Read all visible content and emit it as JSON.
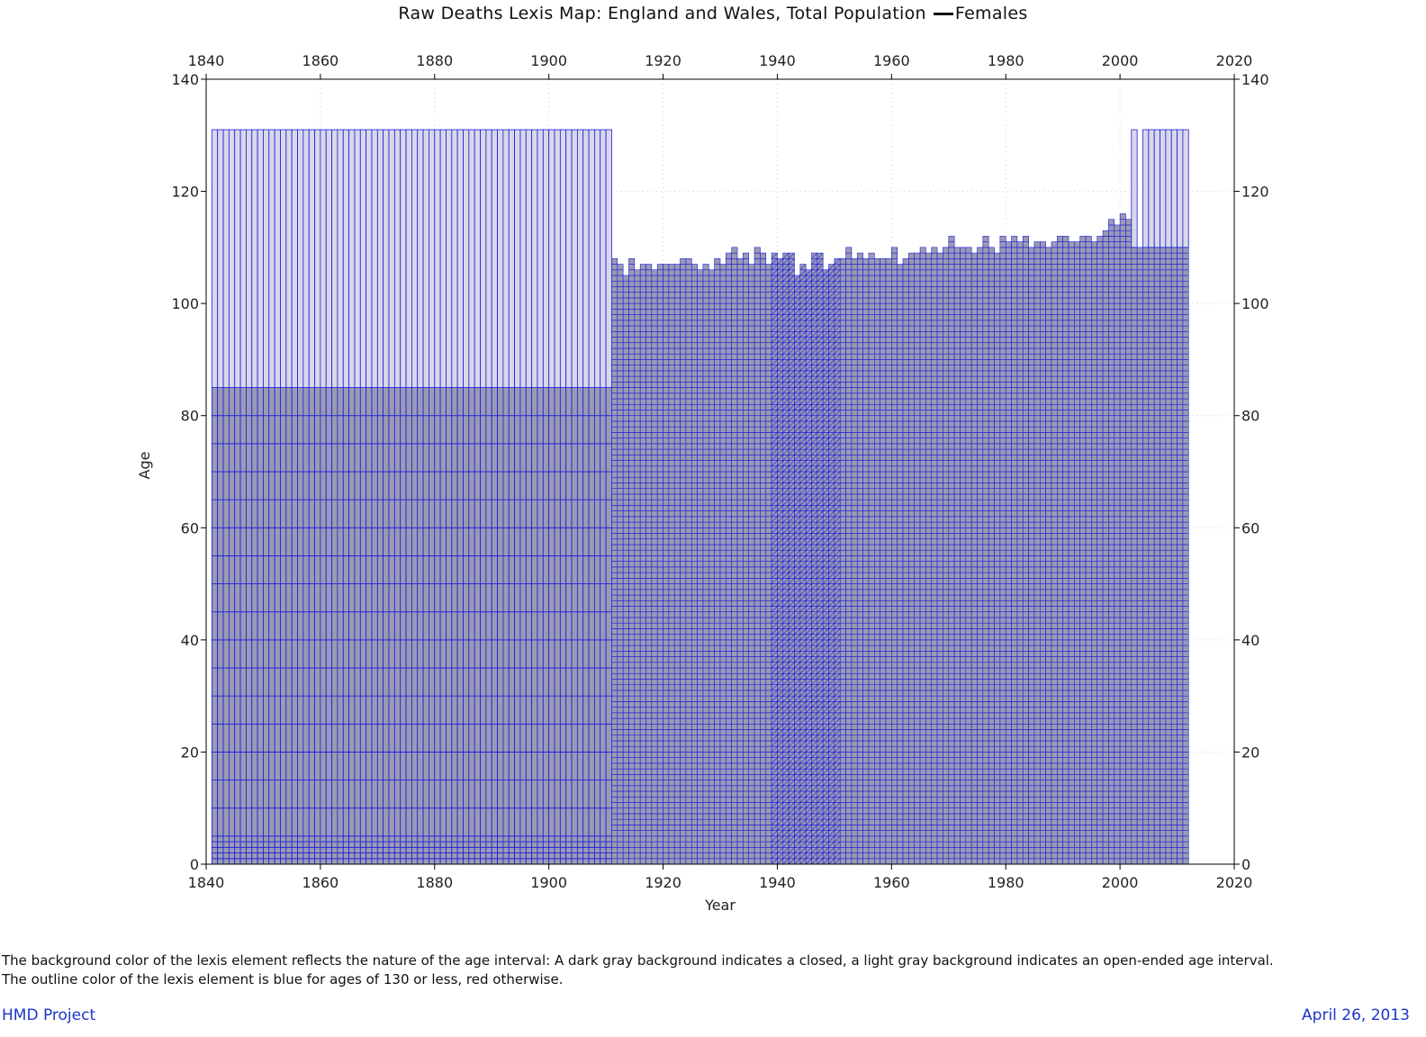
{
  "title_main": "Raw Deaths Lexis Map: England and Wales, Total Population",
  "title_series": "Females",
  "notes": [
    "The background color of the lexis element reflects the nature of the age interval: A dark gray background indicates a closed, a light gray background indicates an open-ended age interval.",
    "The outline color of the lexis element is blue for ages of 130 or less, red otherwise."
  ],
  "footer": {
    "left": "HMD Project",
    "right": "April 26, 2013"
  },
  "colors": {
    "closed_bg": "#9a9ab4",
    "open_bg": "#d8d8ea",
    "outline_le130": "#1c1cdc",
    "outline_gt130": "#dc1c1c",
    "axis": "#000000"
  },
  "chart_data": {
    "type": "heatmap",
    "title": "Raw Deaths Lexis Map: England and Wales, Total Population — Females",
    "xlabel": "Year",
    "ylabel": "Age",
    "xlim": [
      1840,
      2020
    ],
    "ylim": [
      0,
      140
    ],
    "xticks": [
      1840,
      1860,
      1880,
      1900,
      1920,
      1940,
      1960,
      1980,
      2000,
      2020
    ],
    "yticks": [
      0,
      20,
      40,
      60,
      80,
      100,
      120,
      140
    ],
    "grid": true,
    "period_1841_1910": {
      "years": [
        1841,
        1910
      ],
      "closed_age_boundaries": [
        0,
        1,
        2,
        3,
        4,
        5,
        10,
        15,
        20,
        25,
        30,
        35,
        40,
        45,
        50,
        55,
        60,
        65,
        70,
        75,
        80,
        85
      ],
      "open_interval": [
        85,
        131
      ],
      "year_step": 1
    },
    "period_1911_2011": {
      "years": [
        1911,
        2011
      ],
      "year_step": 1,
      "age_step": 1,
      "max_closed_age_by_year": {
        "1911": 108,
        "1912": 107,
        "1913": 105,
        "1914": 108,
        "1915": 106,
        "1916": 107,
        "1917": 107,
        "1918": 106,
        "1919": 107,
        "1920": 107,
        "1921": 107,
        "1922": 107,
        "1923": 108,
        "1924": 108,
        "1925": 107,
        "1926": 106,
        "1927": 107,
        "1928": 106,
        "1929": 108,
        "1930": 107,
        "1931": 109,
        "1932": 110,
        "1933": 108,
        "1934": 109,
        "1935": 107,
        "1936": 110,
        "1937": 109,
        "1938": 107,
        "1939": 109,
        "1940": 108,
        "1941": 109,
        "1942": 109,
        "1943": 105,
        "1944": 107,
        "1945": 106,
        "1946": 109,
        "1947": 109,
        "1948": 106,
        "1949": 107,
        "1950": 108,
        "1951": 108,
        "1952": 110,
        "1953": 108,
        "1954": 109,
        "1955": 108,
        "1956": 109,
        "1957": 108,
        "1958": 108,
        "1959": 108,
        "1960": 110,
        "1961": 107,
        "1962": 108,
        "1963": 109,
        "1964": 109,
        "1965": 110,
        "1966": 109,
        "1967": 110,
        "1968": 109,
        "1969": 110,
        "1970": 112,
        "1971": 110,
        "1972": 110,
        "1973": 110,
        "1974": 109,
        "1975": 110,
        "1976": 112,
        "1977": 110,
        "1978": 109,
        "1979": 112,
        "1980": 111,
        "1981": 112,
        "1982": 111,
        "1983": 112,
        "1984": 110,
        "1985": 111,
        "1986": 111,
        "1987": 110,
        "1988": 111,
        "1989": 112,
        "1990": 112,
        "1991": 111,
        "1992": 111,
        "1993": 112,
        "1994": 112,
        "1995": 111,
        "1996": 112,
        "1997": 113,
        "1998": 115,
        "1999": 114,
        "2000": 116,
        "2001": 115,
        "2002": 110,
        "2003": 110,
        "2004": 110,
        "2005": 110,
        "2006": 110,
        "2007": 110,
        "2008": 110,
        "2009": 110,
        "2010": 110,
        "2011": 110
      },
      "open_interval_top": 131,
      "open_interval_years": [
        2002,
        2004,
        2005,
        2006,
        2007,
        2008,
        2009,
        2010,
        2011
      ],
      "lexis_triangle_years": [
        1939,
        1950
      ]
    }
  }
}
